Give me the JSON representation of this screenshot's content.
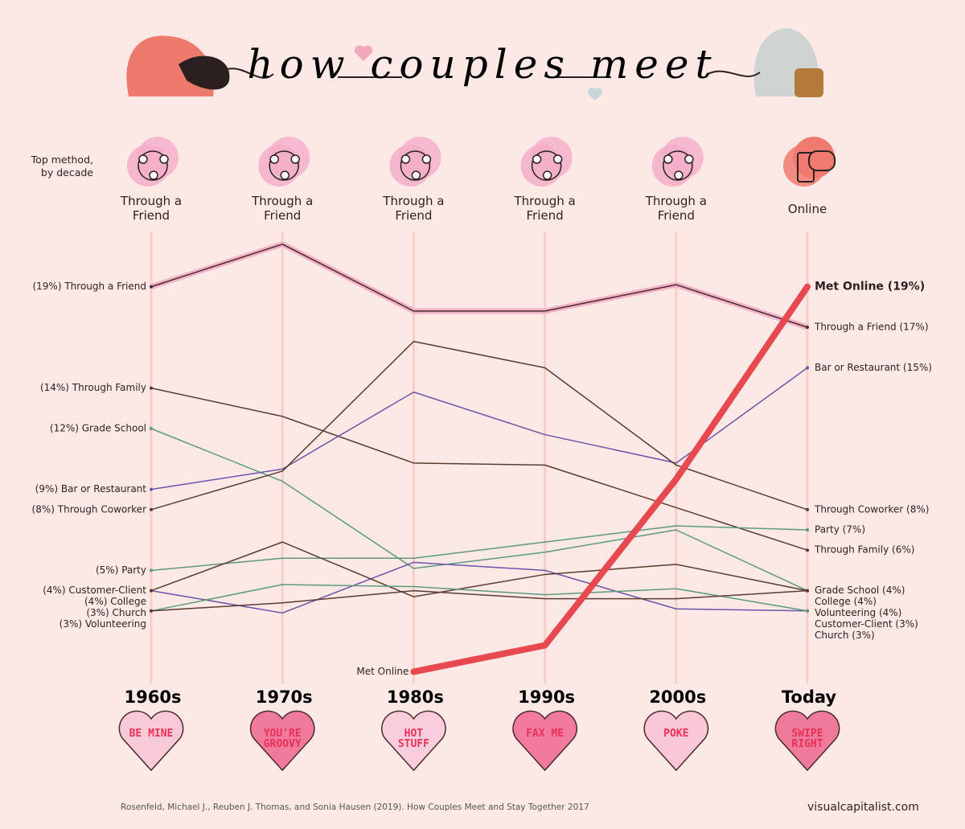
{
  "chart_data": {
    "type": "line",
    "title": "how couples meet",
    "top_method_label": "Top method, by decade",
    "top_methods": [
      "Through a Friend",
      "Through a Friend",
      "Through a Friend",
      "Through a Friend",
      "Through a Friend",
      "Online"
    ],
    "categories": [
      "1960s",
      "1970s",
      "1980s",
      "1990s",
      "2000s",
      "Today"
    ],
    "candy_hearts": [
      "BE MINE",
      "YOU'RE GROOVY",
      "HOT STUFF",
      "FAX ME",
      "POKE",
      "SWIPE RIGHT"
    ],
    "ylim": [
      -0.5,
      22
    ],
    "series": [
      {
        "color": "#4a2a2e",
        "highlight": "#f2b3c6",
        "values": [
          19,
          21.1,
          17.8,
          17.8,
          19.1,
          17
        ],
        "value_labels": [
          "(19%) Through a Friend",
          null,
          null,
          null,
          null,
          "Through a Friend (17%)"
        ]
      },
      {
        "color": "#5b3b30",
        "values": [
          14,
          12.6,
          10.3,
          10.2,
          8.1,
          6
        ],
        "value_labels": [
          "(14%) Through Family",
          null,
          null,
          null,
          null,
          "Through Family (6%)"
        ]
      },
      {
        "color": "#5e9a7a",
        "values": [
          12,
          9.4,
          5.1,
          5.9,
          7.0,
          4
        ],
        "value_labels": [
          "(12%) Grade School",
          null,
          null,
          null,
          null,
          "Grade School (4%)"
        ]
      },
      {
        "color": "#6b55a8",
        "values": [
          9,
          10,
          13.8,
          11.7,
          10.3,
          15
        ],
        "value_labels": [
          "(9%) Bar or Restaurant",
          null,
          null,
          null,
          null,
          "Bar or Restaurant (15%)"
        ]
      },
      {
        "color": "#5b3b30",
        "values": [
          8,
          9.9,
          16.3,
          15,
          10.2,
          8
        ],
        "value_labels": [
          "(8%) Through Coworker",
          null,
          null,
          null,
          null,
          "Through Coworker (8%)"
        ]
      },
      {
        "color": "#5e9a7a",
        "values": [
          5,
          5.6,
          5.6,
          6.4,
          7.2,
          7
        ],
        "value_labels": [
          "(5%) Party",
          null,
          null,
          null,
          null,
          "Party (7%)"
        ]
      },
      {
        "color": "#6b55a8",
        "values": [
          4,
          2.9,
          5.4,
          5.0,
          3.1,
          3
        ],
        "value_labels": [
          "(4%) Customer-Client",
          null,
          null,
          null,
          null,
          "Customer-Client (3%)"
        ]
      },
      {
        "color": "#5b3b30",
        "values": [
          4,
          6.4,
          3.7,
          4.8,
          5.3,
          4
        ],
        "value_labels": [
          "(4%) College",
          null,
          null,
          null,
          null,
          "College (4%)"
        ]
      },
      {
        "color": "#5e9a7a",
        "values": [
          3,
          4.3,
          4.2,
          3.8,
          4.1,
          3
        ],
        "value_labels": [
          "(3%) Church",
          null,
          null,
          null,
          null,
          "Church (3%)"
        ]
      },
      {
        "color": "#5b3b30",
        "values": [
          3,
          3.4,
          4.0,
          3.6,
          3.6,
          4
        ],
        "value_labels": [
          "(3%) Volunteering",
          null,
          null,
          null,
          null,
          "Volunteering (4%)"
        ]
      },
      {
        "color": "#e8484f",
        "width": 8,
        "values": [
          null,
          null,
          0,
          1.3,
          9.5,
          19
        ],
        "value_labels": [
          null,
          null,
          "Met Online",
          null,
          null,
          "Met Online (19%)"
        ]
      }
    ],
    "source": "Rosenfeld, Michael J., Reuben J. Thomas, and Sonia Hausen (2019). How Couples Meet and Stay Together 2017",
    "credit": "visualcapitalist.com"
  }
}
